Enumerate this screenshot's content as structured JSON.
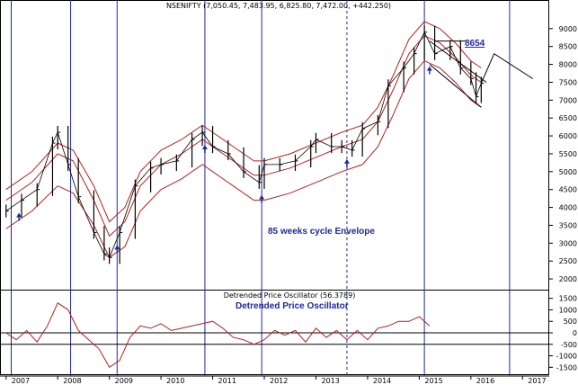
{
  "chart_data": [
    {
      "type": "line",
      "title": "NSENIFTY (7,050.45, 7,483.95, 6,825.80, 7,472.00, +442.250)",
      "annotations": [
        "85 weeks cycle Envelope",
        "8654"
      ],
      "y_ticks": [
        2000,
        2500,
        3000,
        3500,
        4000,
        4500,
        5000,
        5500,
        6000,
        6500,
        7000,
        7500,
        8000,
        8500,
        9000
      ],
      "ylim": [
        1700,
        9700
      ],
      "x_ticks": [
        "2007",
        "2008",
        "2009",
        "2010",
        "2011",
        "2012",
        "2013",
        "2014",
        "2015",
        "2016",
        "2017"
      ],
      "xlim": [
        2006.9,
        2017.5
      ],
      "series": [
        {
          "kind": "price_bars",
          "x": [
            2007.0,
            2007.3,
            2007.6,
            2007.9,
            2008.0,
            2008.2,
            2008.4,
            2008.7,
            2008.9,
            2009.0,
            2009.2,
            2009.5,
            2009.8,
            2010.0,
            2010.3,
            2010.6,
            2010.8,
            2011.0,
            2011.3,
            2011.6,
            2011.9,
            2012.0,
            2012.3,
            2012.6,
            2012.9,
            2013.0,
            2013.3,
            2013.5,
            2013.7,
            2013.9,
            2014.2,
            2014.4,
            2014.7,
            2014.9,
            2015.1,
            2015.3,
            2015.6,
            2015.8,
            2016.0,
            2016.1,
            2016.2
          ],
          "values": [
            3900,
            4200,
            4500,
            5800,
            6100,
            5200,
            4300,
            3300,
            2700,
            2600,
            3300,
            4600,
            5100,
            5200,
            5300,
            5900,
            6100,
            5700,
            5500,
            5000,
            4700,
            5200,
            5200,
            5300,
            5700,
            5900,
            5700,
            5700,
            5600,
            6200,
            6400,
            7400,
            7900,
            8300,
            8900,
            8300,
            8500,
            7900,
            7600,
            7100,
            7472
          ]
        },
        {
          "kind": "envelope_center",
          "x": [
            2007.0,
            2007.5,
            2008.0,
            2008.3,
            2008.7,
            2009.0,
            2009.3,
            2009.6,
            2010.0,
            2010.4,
            2010.8,
            2011.0,
            2011.4,
            2011.8,
            2012.0,
            2012.5,
            2013.0,
            2013.5,
            2013.9,
            2014.2,
            2014.5,
            2014.8,
            2015.1,
            2015.4,
            2015.7,
            2016.0,
            2016.2
          ],
          "values": [
            4200,
            4700,
            5500,
            5300,
            4200,
            3200,
            3600,
            4600,
            5200,
            5500,
            5900,
            5700,
            5300,
            4900,
            4900,
            5100,
            5400,
            5700,
            5900,
            6400,
            7300,
            8300,
            8800,
            8600,
            8200,
            7700,
            7500
          ]
        },
        {
          "kind": "envelope_upper",
          "x": [
            2007.0,
            2007.5,
            2008.0,
            2008.3,
            2008.7,
            2009.0,
            2009.3,
            2009.6,
            2010.0,
            2010.4,
            2010.8,
            2011.0,
            2011.4,
            2011.8,
            2012.0,
            2012.5,
            2013.0,
            2013.5,
            2013.9,
            2014.2,
            2014.5,
            2014.8,
            2015.1,
            2015.4,
            2015.7,
            2016.0,
            2016.2
          ],
          "values": [
            4500,
            5000,
            5800,
            5600,
            4600,
            3600,
            4000,
            5000,
            5600,
            5900,
            6300,
            6100,
            5700,
            5300,
            5300,
            5500,
            5800,
            6100,
            6300,
            6800,
            7700,
            8700,
            9200,
            9000,
            8600,
            8100,
            7900
          ]
        },
        {
          "kind": "envelope_lower",
          "x": [
            2007.0,
            2007.5,
            2008.0,
            2008.3,
            2008.7,
            2009.0,
            2009.3,
            2009.6,
            2010.0,
            2010.4,
            2010.8,
            2011.0,
            2011.4,
            2011.8,
            2012.0,
            2012.5,
            2013.0,
            2013.5,
            2013.9,
            2014.2,
            2014.5,
            2014.8,
            2015.1,
            2015.4,
            2015.7,
            2016.0,
            2016.2
          ],
          "values": [
            3400,
            3900,
            4600,
            4400,
            3500,
            2600,
            2900,
            3900,
            4500,
            4800,
            5200,
            5000,
            4600,
            4200,
            4200,
            4400,
            4700,
            5000,
            5200,
            5700,
            6600,
            7600,
            8100,
            7900,
            7500,
            7000,
            6800
          ]
        }
      ],
      "cycle_lows": [
        2007.25,
        2009.15,
        2010.85,
        2011.95,
        2013.6,
        2015.2
      ],
      "cycle_lines_solid": [
        2007.1,
        2008.25,
        2009.15,
        2010.85,
        2011.95,
        2015.1,
        2016.75
      ],
      "cycle_lines_dashed": [
        2013.6
      ],
      "trend_lines": [
        {
          "x": [
            2015.2,
            2016.3
          ],
          "y": [
            8654,
            7500
          ]
        },
        {
          "x": [
            2015.2,
            2016.2
          ],
          "y": [
            8000,
            6800
          ]
        },
        {
          "x": [
            2015.3,
            2015.9
          ],
          "y": [
            8654,
            8654
          ]
        },
        {
          "x": [
            2016.2,
            2016.45,
            2017.2
          ],
          "y": [
            7472,
            8300,
            7600
          ]
        }
      ]
    },
    {
      "type": "line",
      "title": "Detrended Price Oscillator (56.3789)",
      "annotations": [
        "Detrended Price Oscillator"
      ],
      "y_ticks": [
        1500,
        1000,
        500,
        0,
        -500,
        -1000,
        -1500
      ],
      "ylim": [
        -1800,
        1800
      ],
      "reference_lines": [
        0,
        -500
      ],
      "series": [
        {
          "x": [
            2007.0,
            2007.2,
            2007.4,
            2007.6,
            2007.8,
            2008.0,
            2008.2,
            2008.4,
            2008.6,
            2008.8,
            2009.0,
            2009.2,
            2009.4,
            2009.6,
            2009.8,
            2010.0,
            2010.2,
            2010.4,
            2010.6,
            2010.8,
            2011.0,
            2011.2,
            2011.4,
            2011.6,
            2011.8,
            2012.0,
            2012.2,
            2012.4,
            2012.6,
            2012.8,
            2013.0,
            2013.2,
            2013.4,
            2013.6,
            2013.8,
            2014.0,
            2014.2,
            2014.4,
            2014.6,
            2014.8,
            2015.0,
            2015.2
          ],
          "values": [
            0,
            -300,
            100,
            -400,
            300,
            1300,
            1000,
            100,
            -300,
            -700,
            -1500,
            -1200,
            -200,
            300,
            200,
            400,
            100,
            200,
            300,
            400,
            500,
            200,
            -200,
            -300,
            -500,
            -300,
            100,
            -100,
            100,
            -400,
            200,
            -200,
            100,
            -300,
            100,
            -300,
            200,
            300,
            500,
            500,
            700,
            300
          ]
        }
      ]
    }
  ]
}
